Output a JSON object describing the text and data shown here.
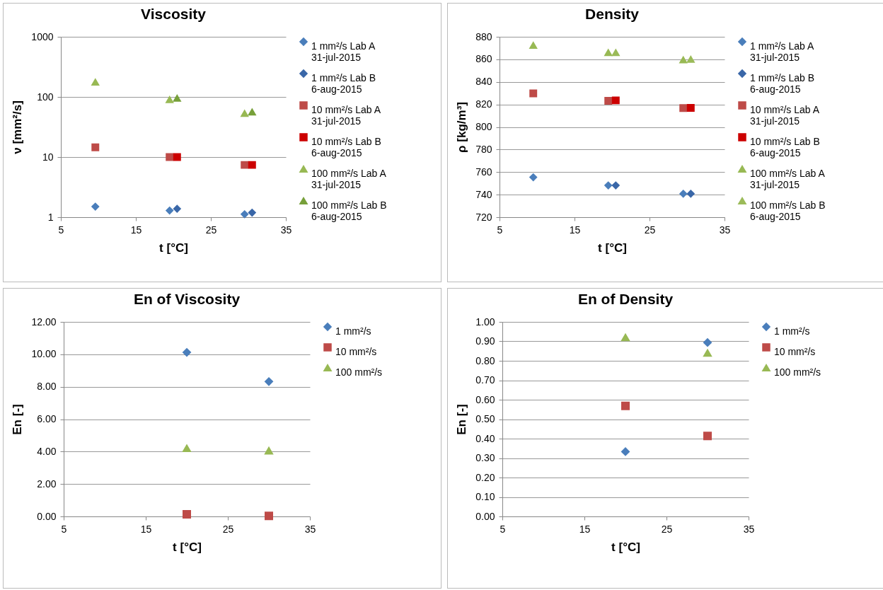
{
  "chart_data": [
    {
      "type": "scatter",
      "title": "Viscosity",
      "xlabel": "t [°C]",
      "ylabel": "ν [mm²/s]",
      "log": true,
      "grid": "y",
      "legend": "right",
      "xlim": [
        5,
        35
      ],
      "xticks": [
        5,
        15,
        25,
        35
      ],
      "ylim": [
        1,
        1000
      ],
      "yticks": [
        1,
        10,
        100,
        1000
      ],
      "series": [
        {
          "name": "1 mm²/s Lab A\n31-jul-2015",
          "color": "#4a7ebb",
          "marker": "diamond",
          "x": [
            9.6,
            19.5,
            29.5
          ],
          "values": [
            1.5,
            1.29,
            1.12
          ]
        },
        {
          "name": "1 mm²/s Lab B\n6-aug-2015",
          "color": "#3a67a8",
          "marker": "diamond",
          "x": [
            20.5,
            30.5
          ],
          "values": [
            1.38,
            1.19
          ]
        },
        {
          "name": "10 mm²/s Lab A\n31-jul-2015",
          "color": "#be4b48",
          "marker": "square",
          "x": [
            9.6,
            19.5,
            29.5
          ],
          "values": [
            14.5,
            10,
            7.4
          ]
        },
        {
          "name": "10 mm²/s Lab B\n6-aug-2015",
          "color": "#cc0000",
          "marker": "square",
          "x": [
            20.5,
            30.5
          ],
          "values": [
            10,
            7.4
          ]
        },
        {
          "name": "100 mm²/s Lab A\n31-jul-2015",
          "color": "#98b954",
          "marker": "triangle",
          "x": [
            9.6,
            19.5,
            29.5
          ],
          "values": [
            176,
            90,
            53
          ]
        },
        {
          "name": "100 mm²/s Lab B\n6-aug-2015",
          "color": "#77a03a",
          "marker": "triangle",
          "x": [
            20.5,
            30.5
          ],
          "values": [
            95,
            56
          ]
        }
      ]
    },
    {
      "type": "scatter",
      "title": "Density",
      "xlabel": "t [°C]",
      "ylabel": "ρ [kg/m³]",
      "grid": "y",
      "legend": "right",
      "xlim": [
        5,
        35
      ],
      "xticks": [
        5,
        15,
        25,
        35
      ],
      "ylim": [
        720,
        880
      ],
      "yticks": [
        720,
        740,
        760,
        780,
        800,
        820,
        840,
        860,
        880
      ],
      "series": [
        {
          "name": "1 mm²/s Lab A\n31-jul-2015",
          "color": "#4a7ebb",
          "marker": "diamond",
          "x": [
            9.5,
            19.5,
            29.5
          ],
          "values": [
            755.4,
            748.2,
            740.8
          ]
        },
        {
          "name": "1 mm²/s Lab B\n6-aug-2015",
          "color": "#3a67a8",
          "marker": "diamond",
          "x": [
            20.5,
            30.5
          ],
          "values": [
            748.2,
            740.8
          ]
        },
        {
          "name": "10 mm²/s Lab A\n31-jul-2015",
          "color": "#be4b48",
          "marker": "square",
          "x": [
            9.5,
            19.5,
            29.5
          ],
          "values": [
            829.8,
            823.2,
            816.8
          ]
        },
        {
          "name": "10 mm²/s Lab B\n6-aug-2015",
          "color": "#cc0000",
          "marker": "square",
          "x": [
            20.5,
            30.5
          ],
          "values": [
            823.6,
            817
          ]
        },
        {
          "name": "100 mm²/s Lab A\n31-jul-2015",
          "color": "#98b954",
          "marker": "triangle",
          "x": [
            9.5,
            19.5,
            29.5
          ],
          "values": [
            872.4,
            866,
            859.6
          ]
        },
        {
          "name": "100 mm²/s Lab B\n6-aug-2015",
          "color": "#9bbb59",
          "marker": "triangle",
          "x": [
            20.5,
            30.5
          ],
          "values": [
            866,
            860
          ]
        }
      ]
    },
    {
      "type": "scatter",
      "title": "En of Viscosity",
      "xlabel": "t [°C]",
      "ylabel": "En [-]",
      "grid": "y",
      "legend": "right",
      "xlim": [
        5,
        35
      ],
      "xticks": [
        5,
        15,
        25,
        35
      ],
      "ylim": [
        0,
        12
      ],
      "yticks": [
        {
          "value": 0,
          "label": "0.00"
        },
        {
          "value": 2,
          "label": "2.00"
        },
        {
          "value": 4,
          "label": "4.00"
        },
        {
          "value": 6,
          "label": "6.00"
        },
        {
          "value": 8,
          "label": "8.00"
        },
        {
          "value": 10,
          "label": "10.00"
        },
        {
          "value": 12,
          "label": "12.00"
        }
      ],
      "series": [
        {
          "name": "1 mm²/s",
          "color": "#4a7ebb",
          "marker": "diamond",
          "x": [
            20,
            30
          ],
          "values": [
            10.12,
            8.32
          ]
        },
        {
          "name": "10 mm²/s",
          "color": "#be4b48",
          "marker": "square",
          "x": [
            20,
            30
          ],
          "values": [
            0.13,
            0.03
          ]
        },
        {
          "name": "100 mm²/s",
          "color": "#98b954",
          "marker": "triangle",
          "x": [
            20,
            30
          ],
          "values": [
            4.2,
            4.05
          ]
        }
      ]
    },
    {
      "type": "scatter",
      "title": "En of Density",
      "xlabel": "t [°C]",
      "ylabel": "En [-]",
      "grid": "y",
      "legend": "right",
      "xlim": [
        5,
        35
      ],
      "xticks": [
        5,
        15,
        25,
        35
      ],
      "ylim": [
        0,
        1
      ],
      "yticks": [
        {
          "value": 0,
          "label": "0.00"
        },
        {
          "value": 0.1,
          "label": "0.10"
        },
        {
          "value": 0.2,
          "label": "0.20"
        },
        {
          "value": 0.3,
          "label": "0.30"
        },
        {
          "value": 0.4,
          "label": "0.40"
        },
        {
          "value": 0.5,
          "label": "0.50"
        },
        {
          "value": 0.6,
          "label": "0.60"
        },
        {
          "value": 0.7,
          "label": "0.70"
        },
        {
          "value": 0.8,
          "label": "0.80"
        },
        {
          "value": 0.9,
          "label": "0.90"
        },
        {
          "value": 1,
          "label": "1.00"
        }
      ],
      "series": [
        {
          "name": "1 mm²/s",
          "color": "#4a7ebb",
          "marker": "diamond",
          "x": [
            20,
            30
          ],
          "values": [
            0.333,
            0.894
          ]
        },
        {
          "name": "10 mm²/s",
          "color": "#be4b48",
          "marker": "square",
          "x": [
            20,
            30
          ],
          "values": [
            0.568,
            0.414
          ]
        },
        {
          "name": "100 mm²/s",
          "color": "#98b954",
          "marker": "triangle",
          "x": [
            20,
            30
          ],
          "values": [
            0.92,
            0.84
          ]
        }
      ]
    }
  ]
}
